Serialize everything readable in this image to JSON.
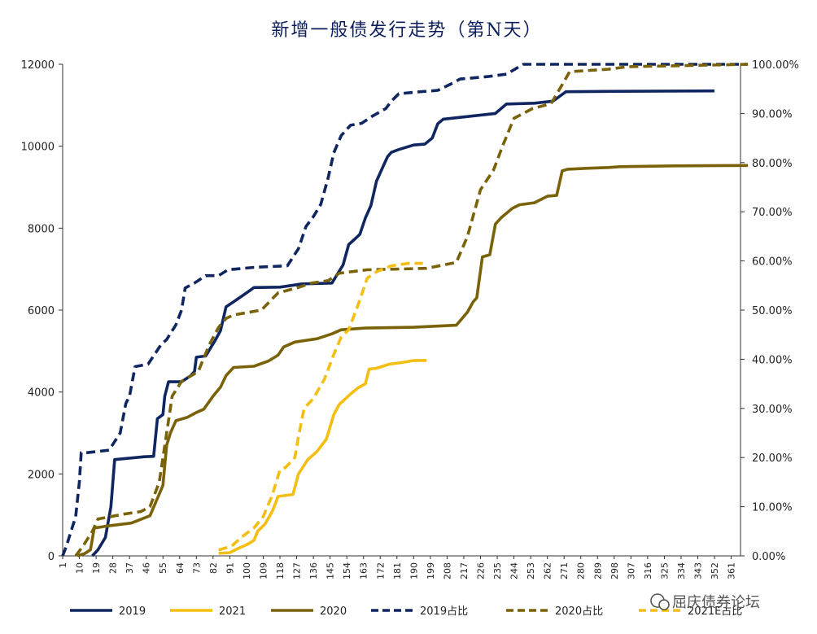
{
  "chart_data": {
    "type": "line",
    "title": "新增一般债发行走势（第N天）",
    "x_ticks": [
      1,
      10,
      19,
      28,
      37,
      46,
      55,
      64,
      73,
      82,
      91,
      100,
      109,
      118,
      127,
      136,
      145,
      154,
      163,
      172,
      181,
      190,
      199,
      208,
      217,
      226,
      235,
      244,
      253,
      262,
      271,
      280,
      289,
      298,
      307,
      316,
      325,
      334,
      343,
      352,
      361
    ],
    "x_range": [
      1,
      366
    ],
    "y_left": {
      "range": [
        0,
        12000
      ],
      "ticks": [
        "0",
        "2000",
        "4000",
        "6000",
        "8000",
        "10000",
        "12000"
      ]
    },
    "y_right": {
      "range": [
        0,
        1
      ],
      "ticks": [
        "0.00%",
        "10.00%",
        "20.00%",
        "30.00%",
        "40.00%",
        "50.00%",
        "60.00%",
        "70.00%",
        "80.00%",
        "90.00%",
        "100.00%"
      ]
    },
    "grid": false,
    "legend_position": "bottom",
    "series": [
      {
        "name": "2019",
        "axis": "left",
        "style": "solid",
        "color": "#0f2660",
        "points": [
          [
            17,
            0
          ],
          [
            20,
            150
          ],
          [
            24,
            450
          ],
          [
            27,
            1200
          ],
          [
            29,
            2350
          ],
          [
            45,
            2420
          ],
          [
            50,
            2430
          ],
          [
            52,
            3350
          ],
          [
            55,
            3450
          ],
          [
            56,
            3900
          ],
          [
            58,
            4250
          ],
          [
            65,
            4250
          ],
          [
            70,
            4400
          ],
          [
            72,
            4500
          ],
          [
            73,
            4850
          ],
          [
            78,
            4880
          ],
          [
            83,
            5250
          ],
          [
            86,
            5500
          ],
          [
            89,
            6080
          ],
          [
            93,
            6200
          ],
          [
            100,
            6420
          ],
          [
            104,
            6550
          ],
          [
            118,
            6560
          ],
          [
            130,
            6640
          ],
          [
            146,
            6660
          ],
          [
            152,
            7100
          ],
          [
            155,
            7600
          ],
          [
            158,
            7720
          ],
          [
            161,
            7850
          ],
          [
            164,
            8250
          ],
          [
            167,
            8550
          ],
          [
            170,
            9150
          ],
          [
            174,
            9550
          ],
          [
            176,
            9750
          ],
          [
            178,
            9850
          ],
          [
            182,
            9920
          ],
          [
            190,
            10030
          ],
          [
            196,
            10050
          ],
          [
            200,
            10200
          ],
          [
            203,
            10550
          ],
          [
            206,
            10660
          ],
          [
            218,
            10720
          ],
          [
            234,
            10800
          ],
          [
            240,
            11030
          ],
          [
            255,
            11050
          ],
          [
            265,
            11100
          ],
          [
            272,
            11330
          ],
          [
            300,
            11340
          ],
          [
            352,
            11350
          ]
        ]
      },
      {
        "name": "2021",
        "axis": "left",
        "style": "solid",
        "color": "#f4bf12",
        "points": [
          [
            85,
            60
          ],
          [
            91,
            80
          ],
          [
            95,
            170
          ],
          [
            100,
            270
          ],
          [
            104,
            380
          ],
          [
            106,
            600
          ],
          [
            110,
            780
          ],
          [
            114,
            1100
          ],
          [
            117,
            1450
          ],
          [
            125,
            1500
          ],
          [
            128,
            2000
          ],
          [
            133,
            2350
          ],
          [
            138,
            2550
          ],
          [
            143,
            2850
          ],
          [
            147,
            3450
          ],
          [
            150,
            3700
          ],
          [
            156,
            3950
          ],
          [
            160,
            4100
          ],
          [
            164,
            4200
          ],
          [
            166,
            4560
          ],
          [
            170,
            4580
          ],
          [
            177,
            4680
          ],
          [
            184,
            4720
          ],
          [
            190,
            4770
          ],
          [
            197,
            4770
          ]
        ]
      },
      {
        "name": "2020",
        "axis": "left",
        "style": "solid",
        "color": "#7a6208",
        "points": [
          [
            9,
            0
          ],
          [
            13,
            60
          ],
          [
            16,
            150
          ],
          [
            18,
            680
          ],
          [
            25,
            730
          ],
          [
            38,
            800
          ],
          [
            48,
            980
          ],
          [
            55,
            1720
          ],
          [
            57,
            2700
          ],
          [
            59,
            3000
          ],
          [
            62,
            3300
          ],
          [
            68,
            3380
          ],
          [
            73,
            3500
          ],
          [
            77,
            3580
          ],
          [
            82,
            3900
          ],
          [
            86,
            4120
          ],
          [
            89,
            4400
          ],
          [
            93,
            4600
          ],
          [
            104,
            4630
          ],
          [
            112,
            4760
          ],
          [
            117,
            4900
          ],
          [
            120,
            5100
          ],
          [
            126,
            5220
          ],
          [
            138,
            5300
          ],
          [
            146,
            5420
          ],
          [
            151,
            5520
          ],
          [
            164,
            5560
          ],
          [
            190,
            5580
          ],
          [
            213,
            5630
          ],
          [
            219,
            5950
          ],
          [
            222,
            6200
          ],
          [
            224,
            6300
          ],
          [
            227,
            7300
          ],
          [
            231,
            7350
          ],
          [
            234,
            8100
          ],
          [
            237,
            8250
          ],
          [
            243,
            8480
          ],
          [
            247,
            8570
          ],
          [
            255,
            8620
          ],
          [
            262,
            8780
          ],
          [
            267,
            8800
          ],
          [
            270,
            9400
          ],
          [
            273,
            9440
          ],
          [
            283,
            9460
          ],
          [
            295,
            9480
          ],
          [
            301,
            9500
          ],
          [
            330,
            9520
          ],
          [
            370,
            9530
          ]
        ]
      },
      {
        "name": "2019占比",
        "axis": "right",
        "style": "dashed",
        "color": "#0f2660",
        "points": [
          [
            1,
            0
          ],
          [
            3,
            0.02
          ],
          [
            8,
            0.08
          ],
          [
            10,
            0.15
          ],
          [
            11,
            0.21
          ],
          [
            14,
            0.21
          ],
          [
            26,
            0.215
          ],
          [
            32,
            0.25
          ],
          [
            35,
            0.31
          ],
          [
            37,
            0.325
          ],
          [
            40,
            0.385
          ],
          [
            47,
            0.39
          ],
          [
            54,
            0.43
          ],
          [
            57,
            0.44
          ],
          [
            62,
            0.47
          ],
          [
            65,
            0.5
          ],
          [
            67,
            0.545
          ],
          [
            72,
            0.555
          ],
          [
            78,
            0.57
          ],
          [
            85,
            0.57
          ],
          [
            90,
            0.582
          ],
          [
            104,
            0.587
          ],
          [
            110,
            0.588
          ],
          [
            122,
            0.59
          ],
          [
            128,
            0.625
          ],
          [
            132,
            0.67
          ],
          [
            136,
            0.69
          ],
          [
            140,
            0.715
          ],
          [
            144,
            0.77
          ],
          [
            147,
            0.82
          ],
          [
            151,
            0.855
          ],
          [
            156,
            0.876
          ],
          [
            162,
            0.88
          ],
          [
            168,
            0.895
          ],
          [
            175,
            0.91
          ],
          [
            178,
            0.925
          ],
          [
            182,
            0.94
          ],
          [
            190,
            0.943
          ],
          [
            203,
            0.947
          ],
          [
            210,
            0.96
          ],
          [
            215,
            0.97
          ],
          [
            230,
            0.975
          ],
          [
            240,
            0.98
          ],
          [
            249,
            1.0
          ],
          [
            370,
            1.0
          ]
        ]
      },
      {
        "name": "2020占比",
        "axis": "right",
        "style": "dashed",
        "color": "#7a6208",
        "points": [
          [
            8,
            0
          ],
          [
            12,
            0.02
          ],
          [
            17,
            0.05
          ],
          [
            20,
            0.075
          ],
          [
            34,
            0.085
          ],
          [
            43,
            0.09
          ],
          [
            48,
            0.1
          ],
          [
            53,
            0.15
          ],
          [
            57,
            0.25
          ],
          [
            60,
            0.325
          ],
          [
            65,
            0.355
          ],
          [
            74,
            0.375
          ],
          [
            80,
            0.43
          ],
          [
            85,
            0.465
          ],
          [
            89,
            0.483
          ],
          [
            93,
            0.49
          ],
          [
            108,
            0.5
          ],
          [
            117,
            0.535
          ],
          [
            127,
            0.545
          ],
          [
            135,
            0.555
          ],
          [
            144,
            0.56
          ],
          [
            150,
            0.575
          ],
          [
            165,
            0.582
          ],
          [
            197,
            0.585
          ],
          [
            213,
            0.597
          ],
          [
            219,
            0.65
          ],
          [
            226,
            0.745
          ],
          [
            233,
            0.785
          ],
          [
            238,
            0.835
          ],
          [
            244,
            0.89
          ],
          [
            254,
            0.91
          ],
          [
            264,
            0.92
          ],
          [
            271,
            0.965
          ],
          [
            274,
            0.985
          ],
          [
            295,
            0.99
          ],
          [
            305,
            0.995
          ],
          [
            370,
            1.0
          ]
        ]
      },
      {
        "name": "2021E占比",
        "axis": "right",
        "style": "dashed",
        "color": "#f4bf12",
        "points": [
          [
            85,
            0.012
          ],
          [
            92,
            0.02
          ],
          [
            98,
            0.04
          ],
          [
            104,
            0.057
          ],
          [
            109,
            0.08
          ],
          [
            114,
            0.125
          ],
          [
            118,
            0.175
          ],
          [
            121,
            0.18
          ],
          [
            126,
            0.2
          ],
          [
            128,
            0.243
          ],
          [
            131,
            0.3
          ],
          [
            136,
            0.32
          ],
          [
            142,
            0.36
          ],
          [
            147,
            0.41
          ],
          [
            151,
            0.445
          ],
          [
            155,
            0.46
          ],
          [
            160,
            0.51
          ],
          [
            165,
            0.565
          ],
          [
            170,
            0.578
          ],
          [
            178,
            0.59
          ],
          [
            187,
            0.595
          ],
          [
            195,
            0.595
          ]
        ]
      }
    ]
  },
  "watermark": {
    "icon": "wechat-icon",
    "text": "屈庆债券论坛"
  }
}
